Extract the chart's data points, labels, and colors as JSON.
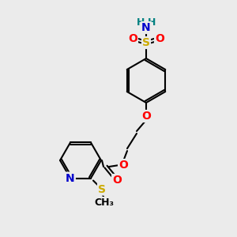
{
  "bg_color": "#ebebeb",
  "atom_colors": {
    "C": "#000000",
    "N": "#0000cc",
    "O": "#ff0000",
    "S": "#ccaa00",
    "H": "#008080"
  },
  "bond_color": "#000000",
  "figsize": [
    3.0,
    3.0
  ],
  "dpi": 100
}
